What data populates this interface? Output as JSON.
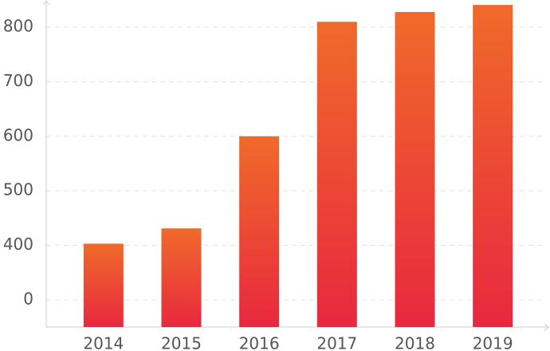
{
  "chart_data": {
    "type": "bar",
    "categories": [
      "2014",
      "2015",
      "2016",
      "2017",
      "2018",
      "2019"
    ],
    "values": [
      403,
      431,
      600,
      810,
      828,
      841
    ],
    "gradient": [
      "#f06a2a",
      "#e8283f"
    ],
    "ylim": [
      250,
      850
    ],
    "yticks": [
      {
        "value": 300,
        "label": "0"
      },
      400,
      500,
      600,
      700,
      800
    ],
    "grid": true
  }
}
